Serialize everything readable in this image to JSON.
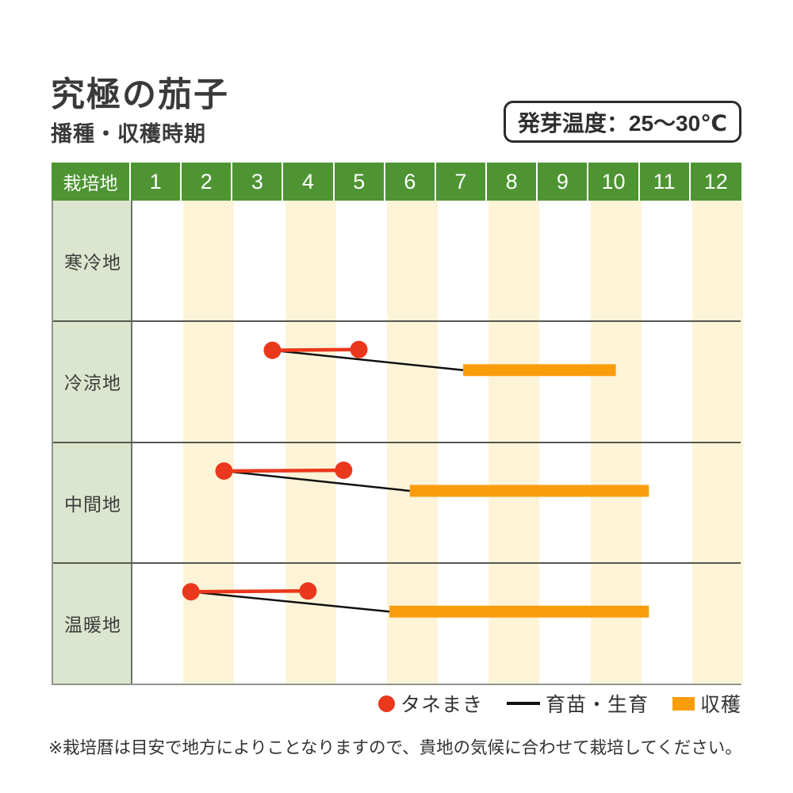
{
  "page": {
    "title": "究極の茄子",
    "subtitle": "播種・収穫時期",
    "germination_box": "発芽温度：25～30℃",
    "footnote": "※栽培暦は目安で地方によりことなりますので、貴地の気候に合わせて栽培してください。"
  },
  "legend": [
    {
      "marker": "dot",
      "label": "タネまき"
    },
    {
      "marker": "line",
      "label": "育苗・生育"
    },
    {
      "marker": "bar",
      "label": "収穫"
    }
  ],
  "colors": {
    "header_green": "#4e9433",
    "label_sage": "#dce5ce",
    "stripe_cream": "#fdf4d8",
    "sowing_red": "#ea381c",
    "growth_black": "#111111",
    "harvest_orange": "#fa9d0d"
  },
  "chart_data": {
    "type": "table",
    "title": "播種・収穫時期 (sowing & harvest calendar)",
    "corner_label": "栽培地",
    "months": [
      "1",
      "2",
      "3",
      "4",
      "5",
      "6",
      "7",
      "8",
      "9",
      "10",
      "11",
      "12"
    ],
    "striped_months": [
      2,
      4,
      6,
      8,
      10,
      12
    ],
    "units": "month position: 1.0 = start of January, 13.0 = end of December",
    "rows": [
      {
        "region": "寒冷地",
        "sowing": null,
        "growth": null,
        "harvest": null
      },
      {
        "region": "冷涼地",
        "sowing": [
          3.75,
          5.45
        ],
        "growth": [
          3.75,
          7.5
        ],
        "harvest": [
          7.5,
          10.5
        ]
      },
      {
        "region": "中間地",
        "sowing": [
          2.8,
          5.15
        ],
        "growth": [
          2.8,
          6.45
        ],
        "harvest": [
          6.45,
          11.15
        ]
      },
      {
        "region": "温暖地",
        "sowing": [
          2.15,
          4.45
        ],
        "growth": [
          2.15,
          6.05
        ],
        "harvest": [
          6.05,
          11.15
        ]
      }
    ],
    "legend_note": "red dots+red line = タネまき, thin black line = 育苗・生育, orange bar = 収穫"
  }
}
